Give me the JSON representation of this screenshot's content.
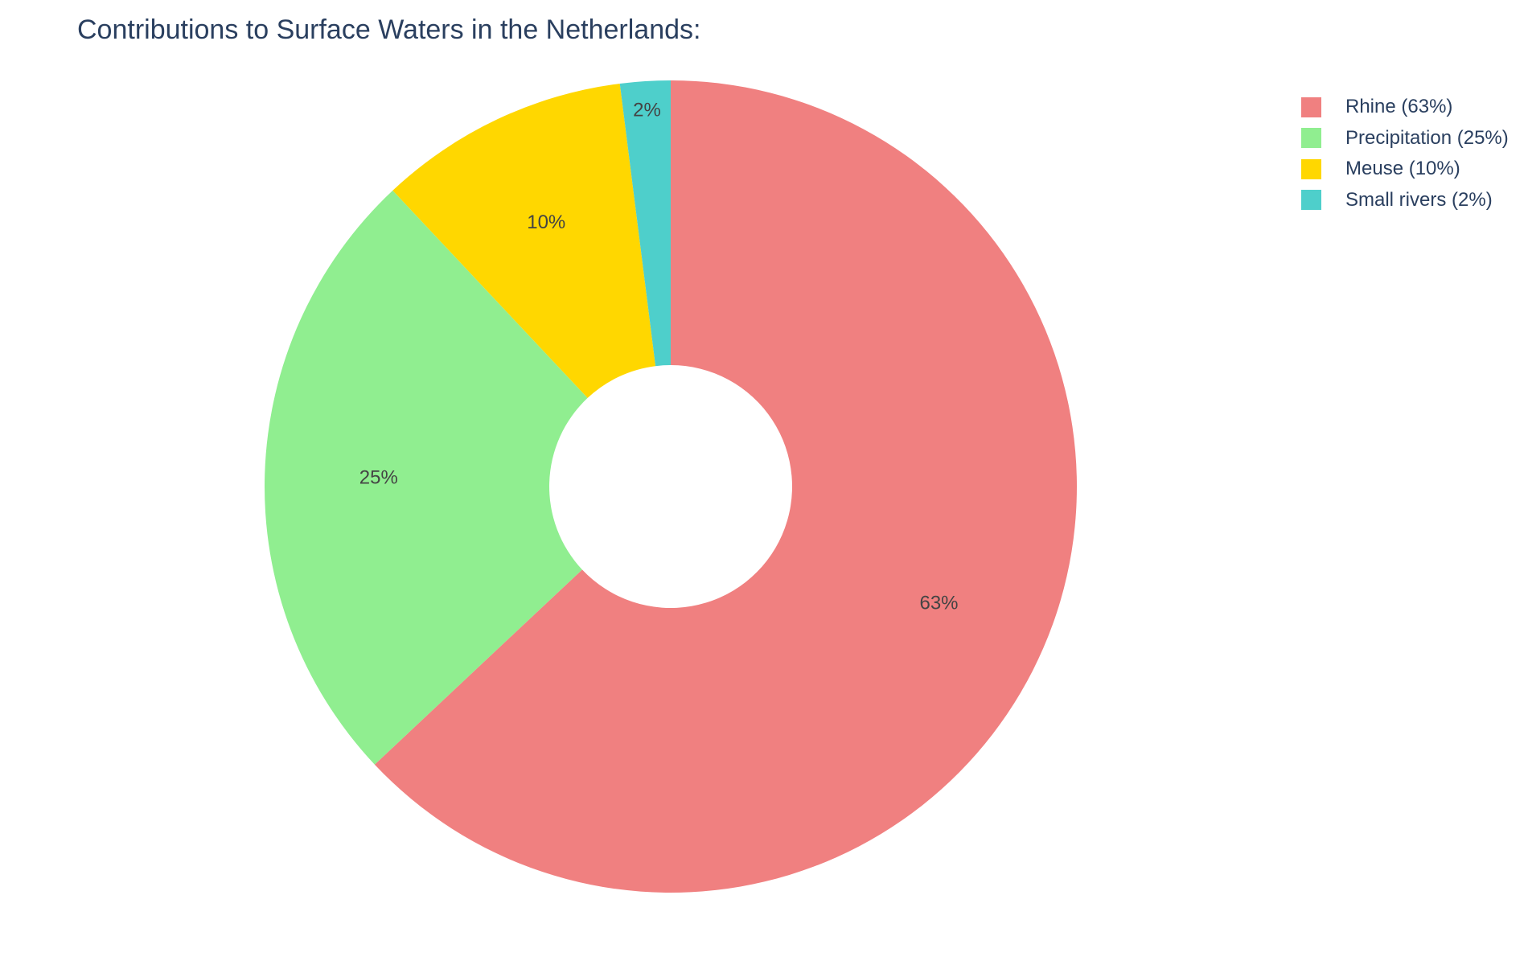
{
  "chart_data": {
    "type": "pie",
    "title": "Contributions to Surface Waters in the Netherlands:",
    "hole": true,
    "legend_position": "top-right",
    "slices": [
      {
        "label": "Rhine (63%)",
        "value": 63,
        "text": "63%",
        "color": "#F08080"
      },
      {
        "label": "Precipitation (25%)",
        "value": 25,
        "text": "25%",
        "color": "#90EE90"
      },
      {
        "label": "Meuse (10%)",
        "value": 10,
        "text": "10%",
        "color": "#FFD700"
      },
      {
        "label": "Small rivers (2%)",
        "value": 2,
        "text": "2%",
        "color": "#4ECFCB"
      }
    ]
  }
}
